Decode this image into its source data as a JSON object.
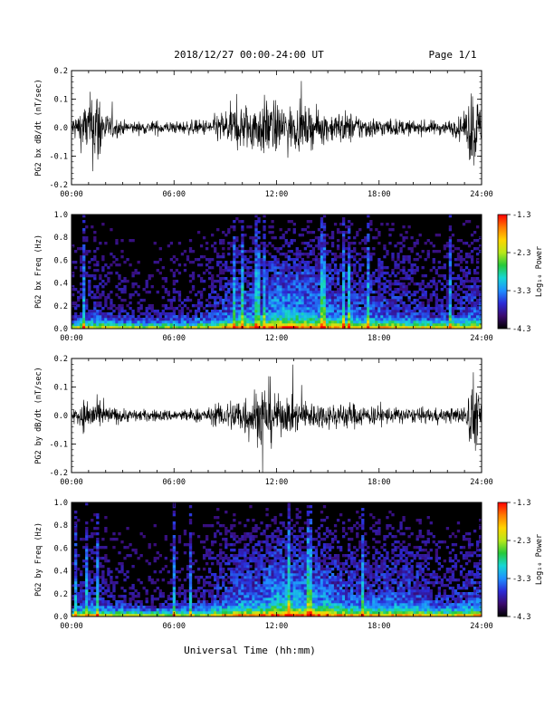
{
  "header": {
    "title": "2018/12/27   00:00-24:00 UT",
    "page": "Page 1/1"
  },
  "footer": {
    "xlabel": "Universal Time (hh:mm)"
  },
  "x_ticks": [
    "00:00",
    "06:00",
    "12:00",
    "18:00",
    "24:00"
  ],
  "colorbar": {
    "label": "Log₁₀ Power",
    "ticks": [
      "-1.3",
      "-2.3",
      "-3.3",
      "-4.3"
    ],
    "range": [
      -4.3,
      -1.3
    ],
    "colors": [
      "#000000",
      "#3a0a6e",
      "#2b2bd6",
      "#1f8fff",
      "#16d6d6",
      "#26c93a",
      "#b8e81a",
      "#ffd400",
      "#ff7a00",
      "#ff0000"
    ]
  },
  "chart_data": [
    {
      "type": "line",
      "ylabel": "PG2 bx dB/dt (nT/sec)",
      "xlim": [
        0,
        24
      ],
      "ylim": [
        -0.2,
        0.2
      ],
      "y_ticks": [
        "0.2",
        "0.1",
        "0.0",
        "-0.1",
        "-0.2"
      ],
      "series": [
        {
          "x": [
            0,
            1,
            1.5,
            2,
            3,
            4,
            5,
            6,
            7,
            8,
            9,
            10,
            11,
            11.5,
            12,
            13,
            14,
            15,
            16,
            17,
            18,
            19,
            20,
            21,
            22,
            23,
            23.5,
            24
          ],
          "amplitude": [
            0.04,
            0.12,
            0.2,
            0.06,
            0.03,
            0.025,
            0.03,
            0.025,
            0.03,
            0.035,
            0.08,
            0.1,
            0.11,
            0.13,
            0.1,
            0.09,
            0.08,
            0.06,
            0.07,
            0.05,
            0.04,
            0.035,
            0.03,
            0.03,
            0.03,
            0.05,
            0.2,
            0.06
          ]
        }
      ]
    },
    {
      "type": "heatmap",
      "ylabel": "PG2 bx Freq (Hz)",
      "xlim": [
        0,
        24
      ],
      "ylim": [
        0,
        1.0
      ],
      "y_ticks": [
        "1.0",
        "0.8",
        "0.6",
        "0.4",
        "0.2",
        "0.0"
      ],
      "zlim": [
        -4.3,
        -1.3
      ],
      "activity": [
        0.2,
        0.35,
        0.25,
        0.2,
        0.15,
        0.15,
        0.2,
        0.2,
        0.3,
        0.45,
        0.55,
        0.5,
        0.75,
        0.7,
        0.65,
        0.55,
        0.5,
        0.45,
        0.45,
        0.4,
        0.35,
        0.3,
        0.3,
        0.4,
        0.45
      ]
    },
    {
      "type": "line",
      "ylabel": "PG2 by dB/dt (nT/sec)",
      "xlim": [
        0,
        24
      ],
      "ylim": [
        -0.2,
        0.2
      ],
      "y_ticks": [
        "0.2",
        "0.1",
        "0.0",
        "-0.1",
        "-0.2"
      ],
      "series": [
        {
          "x": [
            0,
            1,
            1.5,
            2,
            3,
            4,
            5,
            6,
            7,
            8,
            9,
            10,
            11,
            11.5,
            12,
            13,
            14,
            15,
            16,
            17,
            18,
            19,
            20,
            21,
            22,
            23,
            23.5,
            24
          ],
          "amplitude": [
            0.03,
            0.08,
            0.06,
            0.04,
            0.03,
            0.025,
            0.025,
            0.025,
            0.03,
            0.03,
            0.06,
            0.09,
            0.12,
            0.16,
            0.08,
            0.07,
            0.06,
            0.05,
            0.06,
            0.045,
            0.04,
            0.035,
            0.03,
            0.03,
            0.03,
            0.04,
            0.18,
            0.05
          ]
        }
      ]
    },
    {
      "type": "heatmap",
      "ylabel": "PG2 by Freq (Hz)",
      "xlim": [
        0,
        24
      ],
      "ylim": [
        0,
        1.0
      ],
      "y_ticks": [
        "1.0",
        "0.8",
        "0.6",
        "0.4",
        "0.2",
        "0.0"
      ],
      "zlim": [
        -4.3,
        -1.3
      ],
      "activity": [
        0.2,
        0.35,
        0.25,
        0.2,
        0.15,
        0.15,
        0.2,
        0.2,
        0.3,
        0.45,
        0.55,
        0.55,
        0.75,
        0.7,
        0.65,
        0.6,
        0.5,
        0.45,
        0.45,
        0.5,
        0.45,
        0.35,
        0.3,
        0.4,
        0.45
      ]
    }
  ]
}
